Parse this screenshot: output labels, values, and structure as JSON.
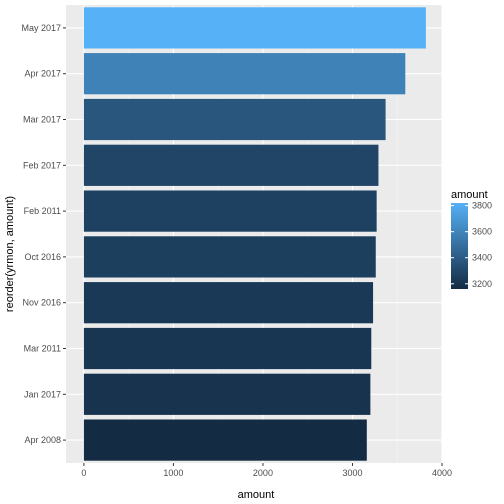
{
  "chart_data": {
    "type": "bar",
    "orientation": "horizontal",
    "categories": [
      "May 2017",
      "Apr 2017",
      "Mar 2017",
      "Feb 2017",
      "Feb 2011",
      "Oct 2016",
      "Nov 2016",
      "Mar 2011",
      "Jan 2017",
      "Apr 2008"
    ],
    "values": [
      3820,
      3590,
      3370,
      3290,
      3270,
      3260,
      3230,
      3210,
      3200,
      3160
    ],
    "xlabel": "amount",
    "ylabel": "reorder(yrmon, amount)",
    "xticks": [
      0,
      1000,
      2000,
      3000,
      4000
    ],
    "xlim": [
      -200,
      4000
    ],
    "grid": true,
    "legend": {
      "title": "amount",
      "placement": "right",
      "ticks": [
        3200,
        3400,
        3600,
        3800
      ],
      "range": [
        3160,
        3820
      ],
      "color_low": "#132b43",
      "color_high": "#56b1f7"
    }
  },
  "colors": {
    "panel_background": "#ebebeb",
    "grid_major": "#ffffff",
    "grid_minor": "#f5f5f5"
  }
}
